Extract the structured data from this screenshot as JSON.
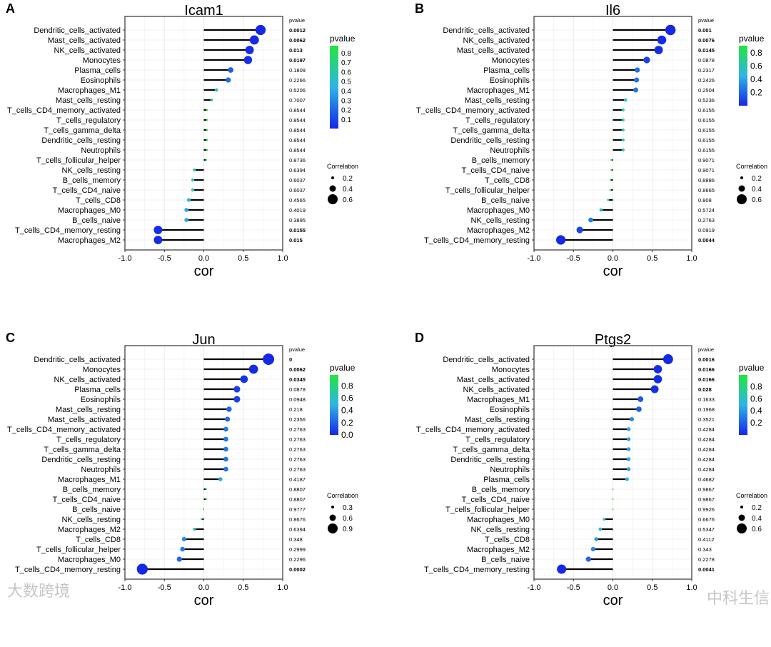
{
  "chart_data": [
    {
      "type": "lollipop",
      "panel_label": "A",
      "title": "Icam1",
      "xlabel": "cor",
      "xlim": [
        -1,
        1
      ],
      "xticks": [
        "-1.0",
        "-0.5",
        "0.0",
        "0.5",
        "1.0"
      ],
      "pvalue_header": "pvalue",
      "categories": [
        "Dendritic_cells_activated",
        "Mast_cells_activated",
        "NK_cells_activated",
        "Monocytes",
        "Plasma_cells",
        "Eosinophils",
        "Macrophages_M1",
        "Mast_cells_resting",
        "T_cells_CD4_memory_activated",
        "T_cells_regulatory",
        "T_cells_gamma_delta",
        "Dendritic_cells_resting",
        "Neutrophils",
        "T_cells_follicular_helper",
        "NK_cells_resting",
        "B_cells_memory",
        "T_cells_CD4_naive",
        "T_cells_CD8",
        "Macrophages_M0",
        "B_cells_naive",
        "T_cells_CD4_memory_resting",
        "Macrophages_M2"
      ],
      "cor": [
        0.72,
        0.64,
        0.58,
        0.56,
        0.34,
        0.31,
        0.16,
        0.1,
        0.04,
        0.04,
        0.04,
        0.04,
        0.04,
        0.03,
        -0.12,
        -0.14,
        -0.14,
        -0.19,
        -0.22,
        -0.22,
        -0.58,
        -0.58
      ],
      "pvalue": [
        "0.0012",
        "0.0062",
        "0.013",
        "0.0197",
        "0.1809",
        "0.2266",
        "0.5206",
        "0.7007",
        "0.8544",
        "0.8544",
        "0.8544",
        "0.8544",
        "0.8544",
        "0.8736",
        "0.6394",
        "0.6037",
        "0.6037",
        "0.4565",
        "0.4019",
        "0.3895",
        "0.0155",
        "0.015"
      ],
      "legend_color": {
        "title": "pvalue",
        "range": [
          0.0012,
          0.8736
        ],
        "ticks": [
          "0.8",
          "0.7",
          "0.6",
          "0.5",
          "0.4",
          "0.3",
          "0.2",
          "0.1"
        ]
      },
      "legend_size": {
        "title": "Correlation",
        "ticks": [
          "0.2",
          "0.4",
          "0.6"
        ]
      }
    },
    {
      "type": "lollipop",
      "panel_label": "B",
      "title": "Il6",
      "xlabel": "cor",
      "xlim": [
        -1,
        1
      ],
      "xticks": [
        "-1.0",
        "-0.5",
        "0.0",
        "0.5",
        "1.0"
      ],
      "pvalue_header": "pvalue",
      "categories": [
        "Dendritic_cells_activated",
        "NK_cells_activated",
        "Mast_cells_activated",
        "Monocytes",
        "Plasma_cells",
        "Eosinophils",
        "Macrophages_M1",
        "Mast_cells_resting",
        "T_cells_CD4_memory_activated",
        "T_cells_regulatory",
        "T_cells_gamma_delta",
        "Dendritic_cells_resting",
        "Neutrophils",
        "B_cells_memory",
        "T_cells_CD4_naive",
        "T_cells_CD8",
        "T_cells_follicular_helper",
        "B_cells_naive",
        "Macrophages_M0",
        "NK_cells_resting",
        "Macrophages_M2",
        "T_cells_CD4_memory_resting"
      ],
      "cor": [
        0.73,
        0.62,
        0.58,
        0.43,
        0.31,
        0.3,
        0.29,
        0.16,
        0.13,
        0.13,
        0.13,
        0.13,
        0.13,
        -0.02,
        -0.02,
        -0.03,
        -0.03,
        -0.06,
        -0.15,
        -0.28,
        -0.42,
        -0.66
      ],
      "pvalue": [
        "0.001",
        "0.0076",
        "0.0145",
        "0.0878",
        "0.2317",
        "0.2426",
        "0.2504",
        "0.5236",
        "0.6155",
        "0.6155",
        "0.6155",
        "0.6155",
        "0.6155",
        "0.9071",
        "0.9071",
        "0.8886",
        "0.8665",
        "0.808",
        "0.5724",
        "0.2763",
        "0.0919",
        "0.0044"
      ],
      "legend_color": {
        "title": "pvalue",
        "range": [
          0.001,
          0.9071
        ],
        "ticks": [
          "0.8",
          "0.6",
          "0.4",
          "0.2"
        ]
      },
      "legend_size": {
        "title": "Correlation",
        "ticks": [
          "0.2",
          "0.4",
          "0.6"
        ]
      }
    },
    {
      "type": "lollipop",
      "panel_label": "C",
      "title": "Jun",
      "xlabel": "cor",
      "xlim": [
        -1,
        1
      ],
      "xticks": [
        "-1.0",
        "-0.5",
        "0.0",
        "0.5",
        "1.0"
      ],
      "pvalue_header": "pvalue",
      "categories": [
        "Dendritic_cells_activated",
        "Monocytes",
        "NK_cells_activated",
        "Plasma_cells",
        "Eosinophils",
        "Mast_cells_resting",
        "Mast_cells_activated",
        "T_cells_CD4_memory_activated",
        "T_cells_regulatory",
        "T_cells_gamma_delta",
        "Dendritic_cells_resting",
        "Neutrophils",
        "Macrophages_M1",
        "B_cells_memory",
        "T_cells_CD4_naive",
        "B_cells_naive",
        "NK_cells_resting",
        "Macrophages_M2",
        "T_cells_CD8",
        "T_cells_follicular_helper",
        "Macrophages_M0",
        "T_cells_CD4_memory_resting"
      ],
      "cor": [
        0.82,
        0.63,
        0.51,
        0.42,
        0.42,
        0.32,
        0.3,
        0.28,
        0.28,
        0.28,
        0.28,
        0.28,
        0.21,
        0.03,
        0.03,
        -0.005,
        -0.03,
        -0.12,
        -0.25,
        -0.27,
        -0.31,
        -0.78
      ],
      "pvalue": [
        "0",
        "0.0062",
        "0.0345",
        "0.0878",
        "0.0948",
        "0.218",
        "0.2356",
        "0.2763",
        "0.2763",
        "0.2763",
        "0.2763",
        "0.2763",
        "0.4187",
        "0.8807",
        "0.8807",
        "0.9777",
        "0.8676",
        "0.6394",
        "0.348",
        "0.2999",
        "0.2296",
        "0.0002"
      ],
      "legend_color": {
        "title": "pvalue",
        "range": [
          0,
          0.9777
        ],
        "ticks": [
          "0.8",
          "0.6",
          "0.4",
          "0.2",
          "0.0"
        ]
      },
      "legend_size": {
        "title": "Correlation",
        "ticks": [
          "0.3",
          "0.6",
          "0.9"
        ]
      }
    },
    {
      "type": "lollipop",
      "panel_label": "D",
      "title": "Ptgs2",
      "xlabel": "cor",
      "xlim": [
        -1,
        1
      ],
      "xticks": [
        "-1.0",
        "-0.5",
        "0.0",
        "0.5",
        "1.0"
      ],
      "pvalue_header": "pvalue",
      "categories": [
        "Dendritic_cells_activated",
        "Monocytes",
        "Mast_cells_activated",
        "NK_cells_activated",
        "Macrophages_M1",
        "Eosinophils",
        "Mast_cells_resting",
        "T_cells_CD4_memory_activated",
        "T_cells_regulatory",
        "T_cells_gamma_delta",
        "Dendritic_cells_resting",
        "Neutrophils",
        "Plasma_cells",
        "B_cells_memory",
        "T_cells_CD4_naive",
        "T_cells_follicular_helper",
        "Macrophages_M0",
        "NK_cells_resting",
        "T_cells_CD8",
        "Macrophages_M2",
        "B_cells_naive",
        "T_cells_CD4_memory_resting"
      ],
      "cor": [
        0.7,
        0.57,
        0.57,
        0.53,
        0.35,
        0.33,
        0.24,
        0.2,
        0.2,
        0.2,
        0.2,
        0.2,
        0.18,
        0.0,
        0.0,
        0.0,
        -0.11,
        -0.16,
        -0.21,
        -0.25,
        -0.31,
        -0.65
      ],
      "pvalue": [
        "0.0016",
        "0.0166",
        "0.0166",
        "0.028",
        "0.1633",
        "0.1968",
        "0.3521",
        "0.4284",
        "0.4284",
        "0.4284",
        "0.4284",
        "0.4284",
        "0.4682",
        "0.9867",
        "0.9867",
        "0.9926",
        "0.6676",
        "0.5347",
        "0.4112",
        "0.343",
        "0.2278",
        "0.0041"
      ],
      "legend_color": {
        "title": "pvalue",
        "range": [
          0.0016,
          0.9926
        ],
        "ticks": [
          "0.8",
          "0.6",
          "0.4",
          "0.2"
        ]
      },
      "legend_size": {
        "title": "Correlation",
        "ticks": [
          "0.2",
          "0.4",
          "0.6"
        ]
      }
    }
  ],
  "colors": {
    "low": "#1428e6",
    "mid": "#2fb4e6",
    "high": "#22e63c",
    "stem": "#000000",
    "grid": "#ebebeb"
  },
  "watermarks": {
    "left": "大数跨境",
    "right": "中科生信"
  }
}
